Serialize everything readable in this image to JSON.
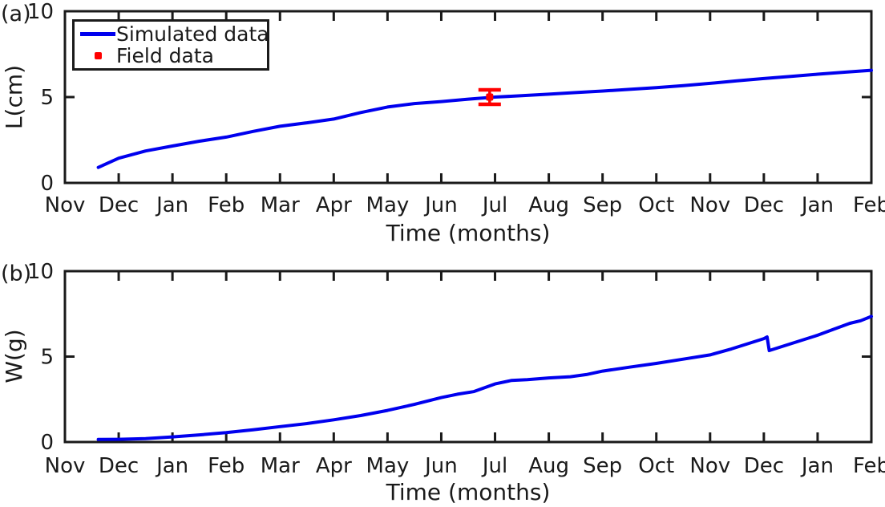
{
  "figure": {
    "background": "#ffffff",
    "axis_color": "#1a1a1a",
    "text_color": "#1a1a1a"
  },
  "chart_data": [
    {
      "type": "line",
      "panel_label": "(a)",
      "xlabel": "Time (months)",
      "ylabel": "L(cm)",
      "ylim": [
        0,
        10
      ],
      "yticks": [
        0,
        5,
        10
      ],
      "x_tick_labels": [
        "Nov",
        "Dec",
        "Jan",
        "Feb",
        "Mar",
        "Apr",
        "May",
        "Jun",
        "Jul",
        "Aug",
        "Sep",
        "Oct",
        "Nov",
        "Dec",
        "Jan",
        "Feb"
      ],
      "grid": false,
      "legend_position": "top-left",
      "series": [
        {
          "name": "Simulated data",
          "color": "#0000ee",
          "x": [
            0.62,
            1,
            1.5,
            2,
            2.5,
            3,
            3.5,
            4,
            4.5,
            5,
            5.5,
            6,
            6.5,
            7,
            7.5,
            8,
            8.5,
            9,
            9.5,
            10,
            10.5,
            11,
            11.5,
            12,
            12.5,
            13,
            13.5,
            14,
            14.5,
            15
          ],
          "y": [
            0.9,
            1.44,
            1.86,
            2.15,
            2.43,
            2.67,
            3.0,
            3.3,
            3.5,
            3.72,
            4.1,
            4.42,
            4.62,
            4.74,
            4.88,
            5.0,
            5.08,
            5.17,
            5.26,
            5.35,
            5.45,
            5.55,
            5.67,
            5.8,
            5.95,
            6.08,
            6.2,
            6.33,
            6.45,
            6.56
          ]
        }
      ],
      "error_point": {
        "name": "Field data",
        "color": "#ff0000",
        "x": 7.9,
        "y": 5.0,
        "yerr": 0.42
      }
    },
    {
      "type": "line",
      "panel_label": "(b)",
      "xlabel": "Time (months)",
      "ylabel": "W(g)",
      "ylim": [
        0,
        10
      ],
      "yticks": [
        0,
        5,
        10
      ],
      "x_tick_labels": [
        "Nov",
        "Dec",
        "Jan",
        "Feb",
        "Mar",
        "Apr",
        "May",
        "Jun",
        "Jul",
        "Aug",
        "Sep",
        "Oct",
        "Nov",
        "Dec",
        "Jan",
        "Feb"
      ],
      "grid": false,
      "series": [
        {
          "name": "Simulated data",
          "color": "#0000ee",
          "x": [
            0.62,
            1,
            1.5,
            2,
            2.5,
            3,
            3.5,
            4,
            4.5,
            5,
            5.5,
            6,
            6.5,
            7,
            7.3,
            7.6,
            8,
            8.3,
            8.6,
            9,
            9.4,
            9.7,
            10,
            10.5,
            11,
            11.5,
            12,
            12.4,
            12.8,
            13.0,
            13.06,
            13.1,
            13.5,
            14,
            14.3,
            14.6,
            14.8,
            15
          ],
          "y": [
            0.15,
            0.16,
            0.2,
            0.3,
            0.42,
            0.55,
            0.72,
            0.9,
            1.08,
            1.3,
            1.55,
            1.85,
            2.2,
            2.6,
            2.8,
            2.95,
            3.4,
            3.6,
            3.65,
            3.75,
            3.82,
            3.95,
            4.15,
            4.38,
            4.6,
            4.85,
            5.1,
            5.45,
            5.85,
            6.05,
            6.15,
            5.35,
            5.75,
            6.25,
            6.6,
            6.95,
            7.1,
            7.35
          ]
        }
      ]
    }
  ]
}
